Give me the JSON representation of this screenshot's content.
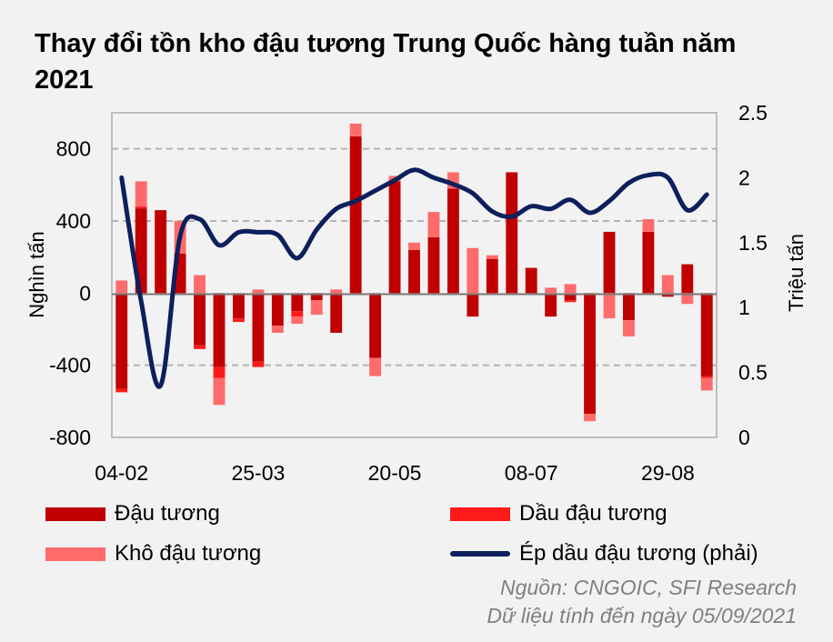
{
  "title": "Thay đổi tồn kho đậu tương Trung Quốc hàng tuần năm 2021",
  "legend": {
    "soybean": "Đậu tương",
    "oil": "Dầu đậu tương",
    "meal": "Khô đậu tương",
    "crush": "Ép dầu đậu tương (phải)"
  },
  "source": "Nguồn: CNGOIC, SFI Research",
  "data_date": "Dữ liệu tính đến ngày 05/09/2021",
  "colors": {
    "soybean": "#c00000",
    "oil": "#ff1a1a",
    "meal": "#ff6b6b",
    "crush": "#0d1f5c",
    "grid": "#b3b3b3"
  },
  "chart_data": {
    "type": "bar",
    "ylabel": "Nghìn tấn",
    "y2label": "Triệu tấn",
    "ylim": [
      -800,
      1000
    ],
    "y2lim": [
      0,
      2.5
    ],
    "yticks": [
      "800",
      "400",
      "0",
      "-400",
      "-800"
    ],
    "y2ticks": [
      "2.5",
      "2",
      "1.5",
      "1",
      "0.5",
      "0"
    ],
    "xticks": [
      "04-02",
      "25-03",
      "20-05",
      "08-07",
      "29-08"
    ],
    "grid": true,
    "series": [
      {
        "name": "Đậu tương",
        "values": [
          -530,
          470,
          460,
          220,
          -290,
          -410,
          -140,
          -380,
          -180,
          -100,
          -40,
          -220,
          870,
          -360,
          620,
          240,
          310,
          580,
          -130,
          190,
          670,
          140,
          -130,
          -40,
          -670,
          340,
          -150,
          340,
          -20,
          160,
          -460
        ]
      },
      {
        "name": "Dầu đậu tương",
        "values": [
          -20,
          10,
          0,
          0,
          -20,
          -60,
          -20,
          -30,
          0,
          -30,
          0,
          0,
          0,
          0,
          0,
          0,
          0,
          0,
          0,
          0,
          0,
          0,
          0,
          -10,
          0,
          0,
          0,
          0,
          0,
          0,
          -10
        ]
      },
      {
        "name": "Khô đậu tương",
        "values": [
          70,
          140,
          0,
          180,
          100,
          -150,
          0,
          20,
          -40,
          -40,
          -80,
          20,
          70,
          -100,
          30,
          40,
          140,
          90,
          250,
          20,
          0,
          0,
          30,
          50,
          -40,
          -140,
          -90,
          70,
          100,
          -60,
          -70
        ]
      },
      {
        "name": "Ép dầu đậu tương (phải)",
        "axis": "right",
        "values": [
          2.0,
          1.05,
          0.4,
          1.55,
          1.68,
          1.48,
          1.58,
          1.58,
          1.56,
          1.38,
          1.6,
          1.76,
          1.82,
          1.9,
          1.98,
          2.06,
          2.0,
          1.95,
          1.88,
          1.74,
          1.7,
          1.78,
          1.76,
          1.83,
          1.73,
          1.82,
          1.96,
          2.02,
          2.0,
          1.75,
          1.87
        ]
      }
    ]
  }
}
